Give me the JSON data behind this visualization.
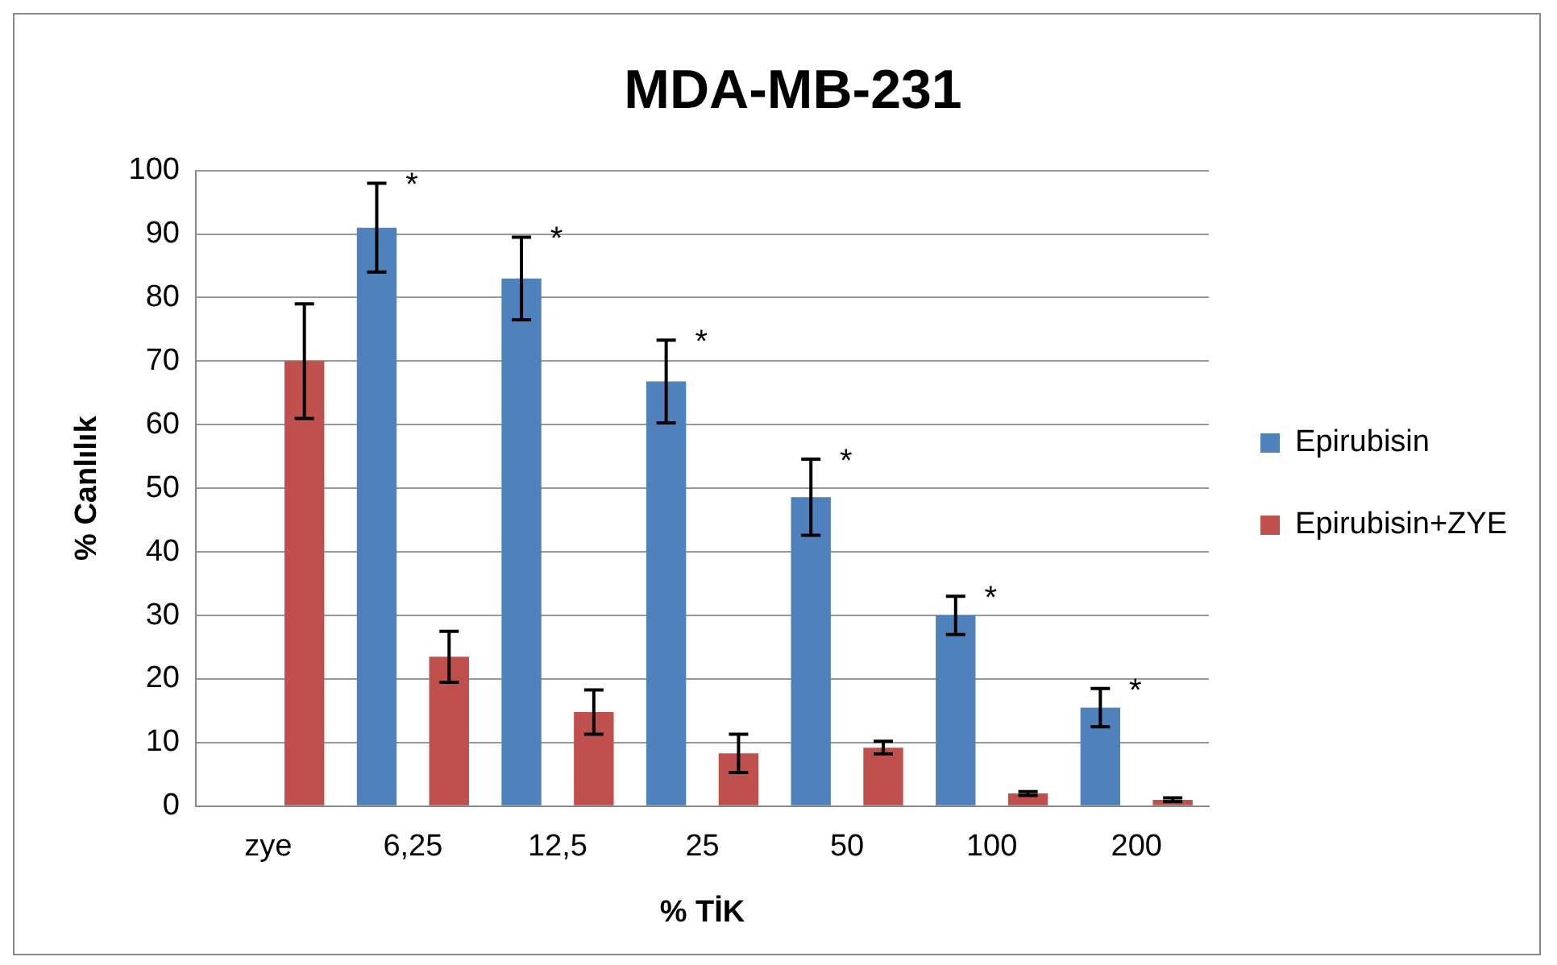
{
  "chart_data": {
    "type": "bar",
    "title": "MDA-MB-231",
    "xlabel": "% TİK",
    "ylabel": "% Canlılık",
    "categories": [
      "zye",
      "6,25",
      "12,5",
      "25",
      "50",
      "100",
      "200"
    ],
    "series": [
      {
        "name": "Epirubisin",
        "color": "#4f81bd",
        "values": [
          null,
          91,
          83,
          66.8,
          48.6,
          30,
          15.5
        ],
        "errors": [
          null,
          7,
          6.5,
          6.5,
          6,
          3,
          3
        ]
      },
      {
        "name": "Epirubisin+ZYE",
        "color": "#c0504d",
        "values": [
          70,
          23.5,
          14.8,
          8.3,
          9.2,
          2,
          1
        ],
        "errors": [
          9,
          4,
          3.5,
          3,
          1,
          0.3,
          0.3
        ]
      }
    ],
    "ylim": [
      0,
      100
    ],
    "yticks": [
      0,
      10,
      20,
      30,
      40,
      50,
      60,
      70,
      80,
      90,
      100
    ],
    "grid": "y",
    "legend": "right",
    "annotations": [
      "*",
      "*",
      "*",
      "*",
      "*",
      "*"
    ]
  }
}
